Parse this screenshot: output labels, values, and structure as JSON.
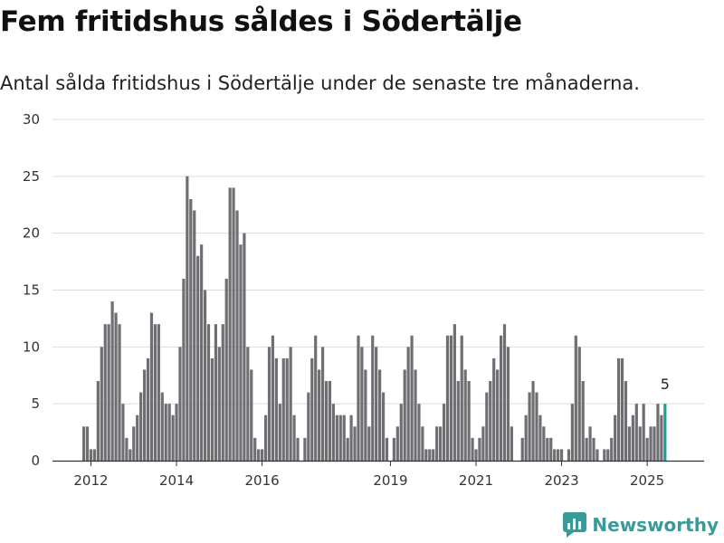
{
  "header": {
    "title": "Fem fritidshus såldes i Södertälje",
    "subtitle": "Antal sålda fritidshus i Södertälje under de senaste tre månaderna."
  },
  "brand": {
    "name": "Newsworthy"
  },
  "colors": {
    "bar": "#6f6e73",
    "highlight": "#1f9e96",
    "grid": "#dcdcdc",
    "axis": "#333333",
    "brand": "#3a9a9a"
  },
  "chart_data": {
    "type": "bar",
    "title": "",
    "xlabel": "",
    "ylabel": "",
    "ylim": [
      0,
      30
    ],
    "yticks": [
      0,
      5,
      10,
      15,
      20,
      25,
      30
    ],
    "xticks": [
      "2012",
      "2014",
      "2016",
      "2019",
      "2021",
      "2023",
      "2025"
    ],
    "grid": true,
    "start": "2011-11",
    "highlight_last": true,
    "highlight_label": "5",
    "values": [
      3,
      3,
      1,
      1,
      7,
      10,
      12,
      12,
      14,
      13,
      12,
      5,
      2,
      1,
      3,
      4,
      6,
      8,
      9,
      13,
      12,
      12,
      6,
      5,
      5,
      4,
      5,
      10,
      16,
      25,
      23,
      22,
      18,
      19,
      15,
      12,
      9,
      12,
      10,
      12,
      16,
      24,
      24,
      22,
      19,
      20,
      10,
      8,
      2,
      1,
      1,
      4,
      10,
      11,
      9,
      5,
      9,
      9,
      10,
      4,
      2,
      0,
      2,
      6,
      9,
      11,
      8,
      10,
      7,
      7,
      5,
      4,
      4,
      4,
      2,
      4,
      3,
      11,
      10,
      8,
      3,
      11,
      10,
      8,
      6,
      2,
      0,
      2,
      3,
      5,
      8,
      10,
      11,
      8,
      5,
      3,
      1,
      1,
      1,
      3,
      3,
      5,
      11,
      11,
      12,
      7,
      11,
      8,
      7,
      2,
      1,
      2,
      3,
      6,
      7,
      9,
      8,
      11,
      12,
      10,
      3,
      0,
      0,
      2,
      4,
      6,
      7,
      6,
      4,
      3,
      2,
      2,
      1,
      1,
      1,
      0,
      1,
      5,
      11,
      10,
      7,
      2,
      3,
      2,
      1,
      0,
      1,
      1,
      2,
      4,
      9,
      9,
      7,
      3,
      4,
      5,
      3,
      5,
      2,
      3,
      3,
      5,
      4,
      5
    ]
  }
}
